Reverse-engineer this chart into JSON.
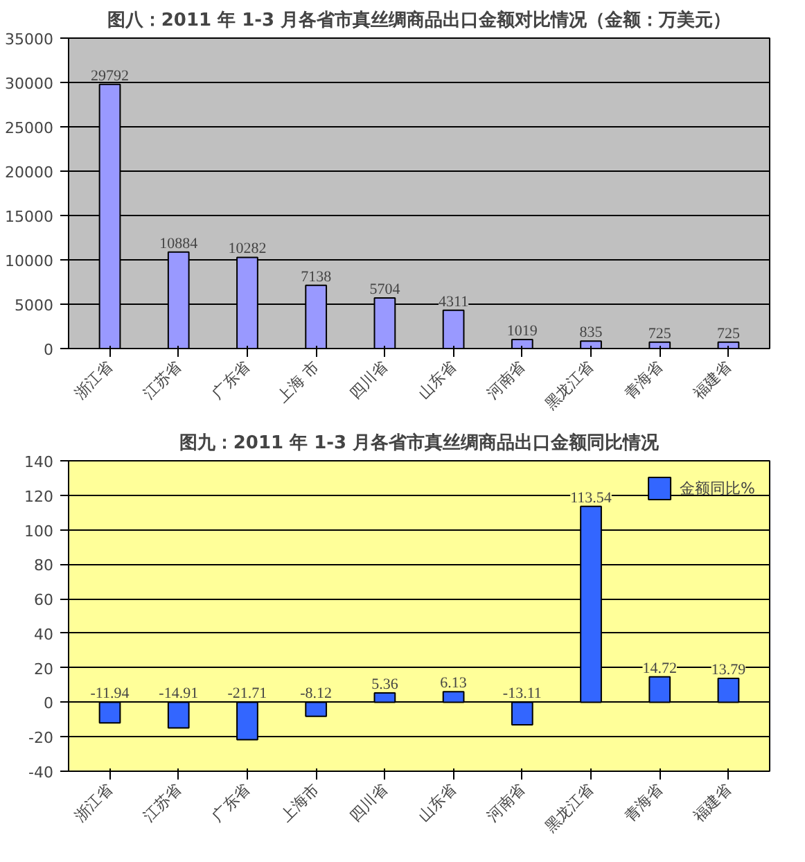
{
  "chart_data": [
    {
      "type": "bar",
      "title": "图八：2011 年 1-3 月各省市真丝绸商品出口金额对比情况（金额：万美元）",
      "categories": [
        "浙江省",
        "江苏省",
        "广东省",
        "上海 市",
        "四川省",
        "山东省",
        "河南省",
        "黑龙江省",
        "青海省",
        "福建省"
      ],
      "values": [
        29792,
        10884,
        10282,
        7138,
        5704,
        4311,
        1019,
        835,
        725,
        725
      ],
      "color": "#9999ff",
      "ylim": [
        0,
        35000
      ],
      "yticks": [
        0,
        5000,
        10000,
        15000,
        20000,
        25000,
        30000,
        35000
      ],
      "grid": "y",
      "data_labels": true
    },
    {
      "type": "bar",
      "title": "图九：2011 年 1-3 月各省市真丝绸商品出口金额同比情况",
      "categories": [
        "浙江省",
        "江苏省",
        "广东省",
        "上海市",
        "四川省",
        "山东省",
        "河南省",
        "黑龙江省",
        "青海省",
        "福建省"
      ],
      "series": [
        {
          "name": "金额同比%",
          "color": "#3366ff",
          "values": [
            -11.94,
            -14.91,
            -21.71,
            -8.12,
            5.36,
            6.13,
            -13.11,
            113.54,
            14.72,
            13.79
          ]
        }
      ],
      "ylim": [
        -40,
        140
      ],
      "yticks": [
        -40,
        -20,
        0,
        20,
        40,
        60,
        80,
        100,
        120,
        140
      ],
      "grid": "y",
      "data_labels": true,
      "legend": "top right"
    }
  ]
}
